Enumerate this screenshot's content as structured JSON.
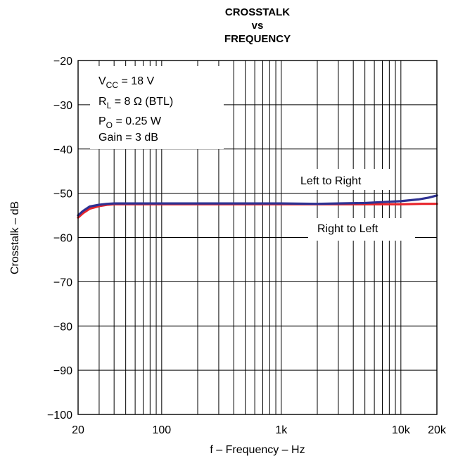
{
  "chart_data": {
    "type": "line",
    "title_lines": [
      "CROSSTALK",
      "vs",
      "FREQUENCY"
    ],
    "xlabel": "f – Frequency – Hz",
    "ylabel": "Crosstalk – dB",
    "x_scale": "log",
    "xlim": [
      20,
      20000
    ],
    "ylim": [
      -100,
      -20
    ],
    "x_ticks": [
      {
        "value": 20,
        "label": "20"
      },
      {
        "value": 100,
        "label": "100"
      },
      {
        "value": 1000,
        "label": "1k"
      },
      {
        "value": 10000,
        "label": "10k"
      },
      {
        "value": 20000,
        "label": "20k"
      }
    ],
    "y_ticks": [
      {
        "value": -20,
        "label": "−20"
      },
      {
        "value": -30,
        "label": "−30"
      },
      {
        "value": -40,
        "label": "−40"
      },
      {
        "value": -50,
        "label": "−50"
      },
      {
        "value": -60,
        "label": "−60"
      },
      {
        "value": -70,
        "label": "−70"
      },
      {
        "value": -80,
        "label": "−80"
      },
      {
        "value": -90,
        "label": "−90"
      },
      {
        "value": -100,
        "label": "−100"
      }
    ],
    "grid": true,
    "conditions": [
      {
        "main": "V",
        "sub": "CC",
        "rest": " = 18 V"
      },
      {
        "main": "R",
        "sub": "L",
        "rest": " = 8 Ω (BTL)"
      },
      {
        "main": "P",
        "sub": "O",
        "rest": " = 0.25 W"
      },
      {
        "main": "Gain = 3 dB",
        "sub": "",
        "rest": ""
      }
    ],
    "series": [
      {
        "name": "Right to Left",
        "color": "#e8232a",
        "x": [
          20,
          22,
          25,
          30,
          35,
          40,
          50,
          70,
          100,
          200,
          500,
          1000,
          2000,
          5000,
          10000,
          15000,
          20000
        ],
        "y": [
          -55.5,
          -54.5,
          -53.5,
          -52.9,
          -52.6,
          -52.5,
          -52.5,
          -52.5,
          -52.5,
          -52.5,
          -52.5,
          -52.5,
          -52.5,
          -52.5,
          -52.5,
          -52.4,
          -52.4
        ]
      },
      {
        "name": "Left to Right",
        "color": "#2e3192",
        "x": [
          20,
          22,
          25,
          30,
          35,
          40,
          50,
          70,
          100,
          200,
          500,
          1000,
          2000,
          3000,
          5000,
          7000,
          10000,
          14000,
          17000,
          20000
        ],
        "y": [
          -55.0,
          -54.0,
          -53.0,
          -52.6,
          -52.4,
          -52.3,
          -52.3,
          -52.3,
          -52.3,
          -52.3,
          -52.3,
          -52.3,
          -52.4,
          -52.3,
          -52.2,
          -52.0,
          -51.8,
          -51.4,
          -51.0,
          -50.5
        ]
      }
    ]
  }
}
